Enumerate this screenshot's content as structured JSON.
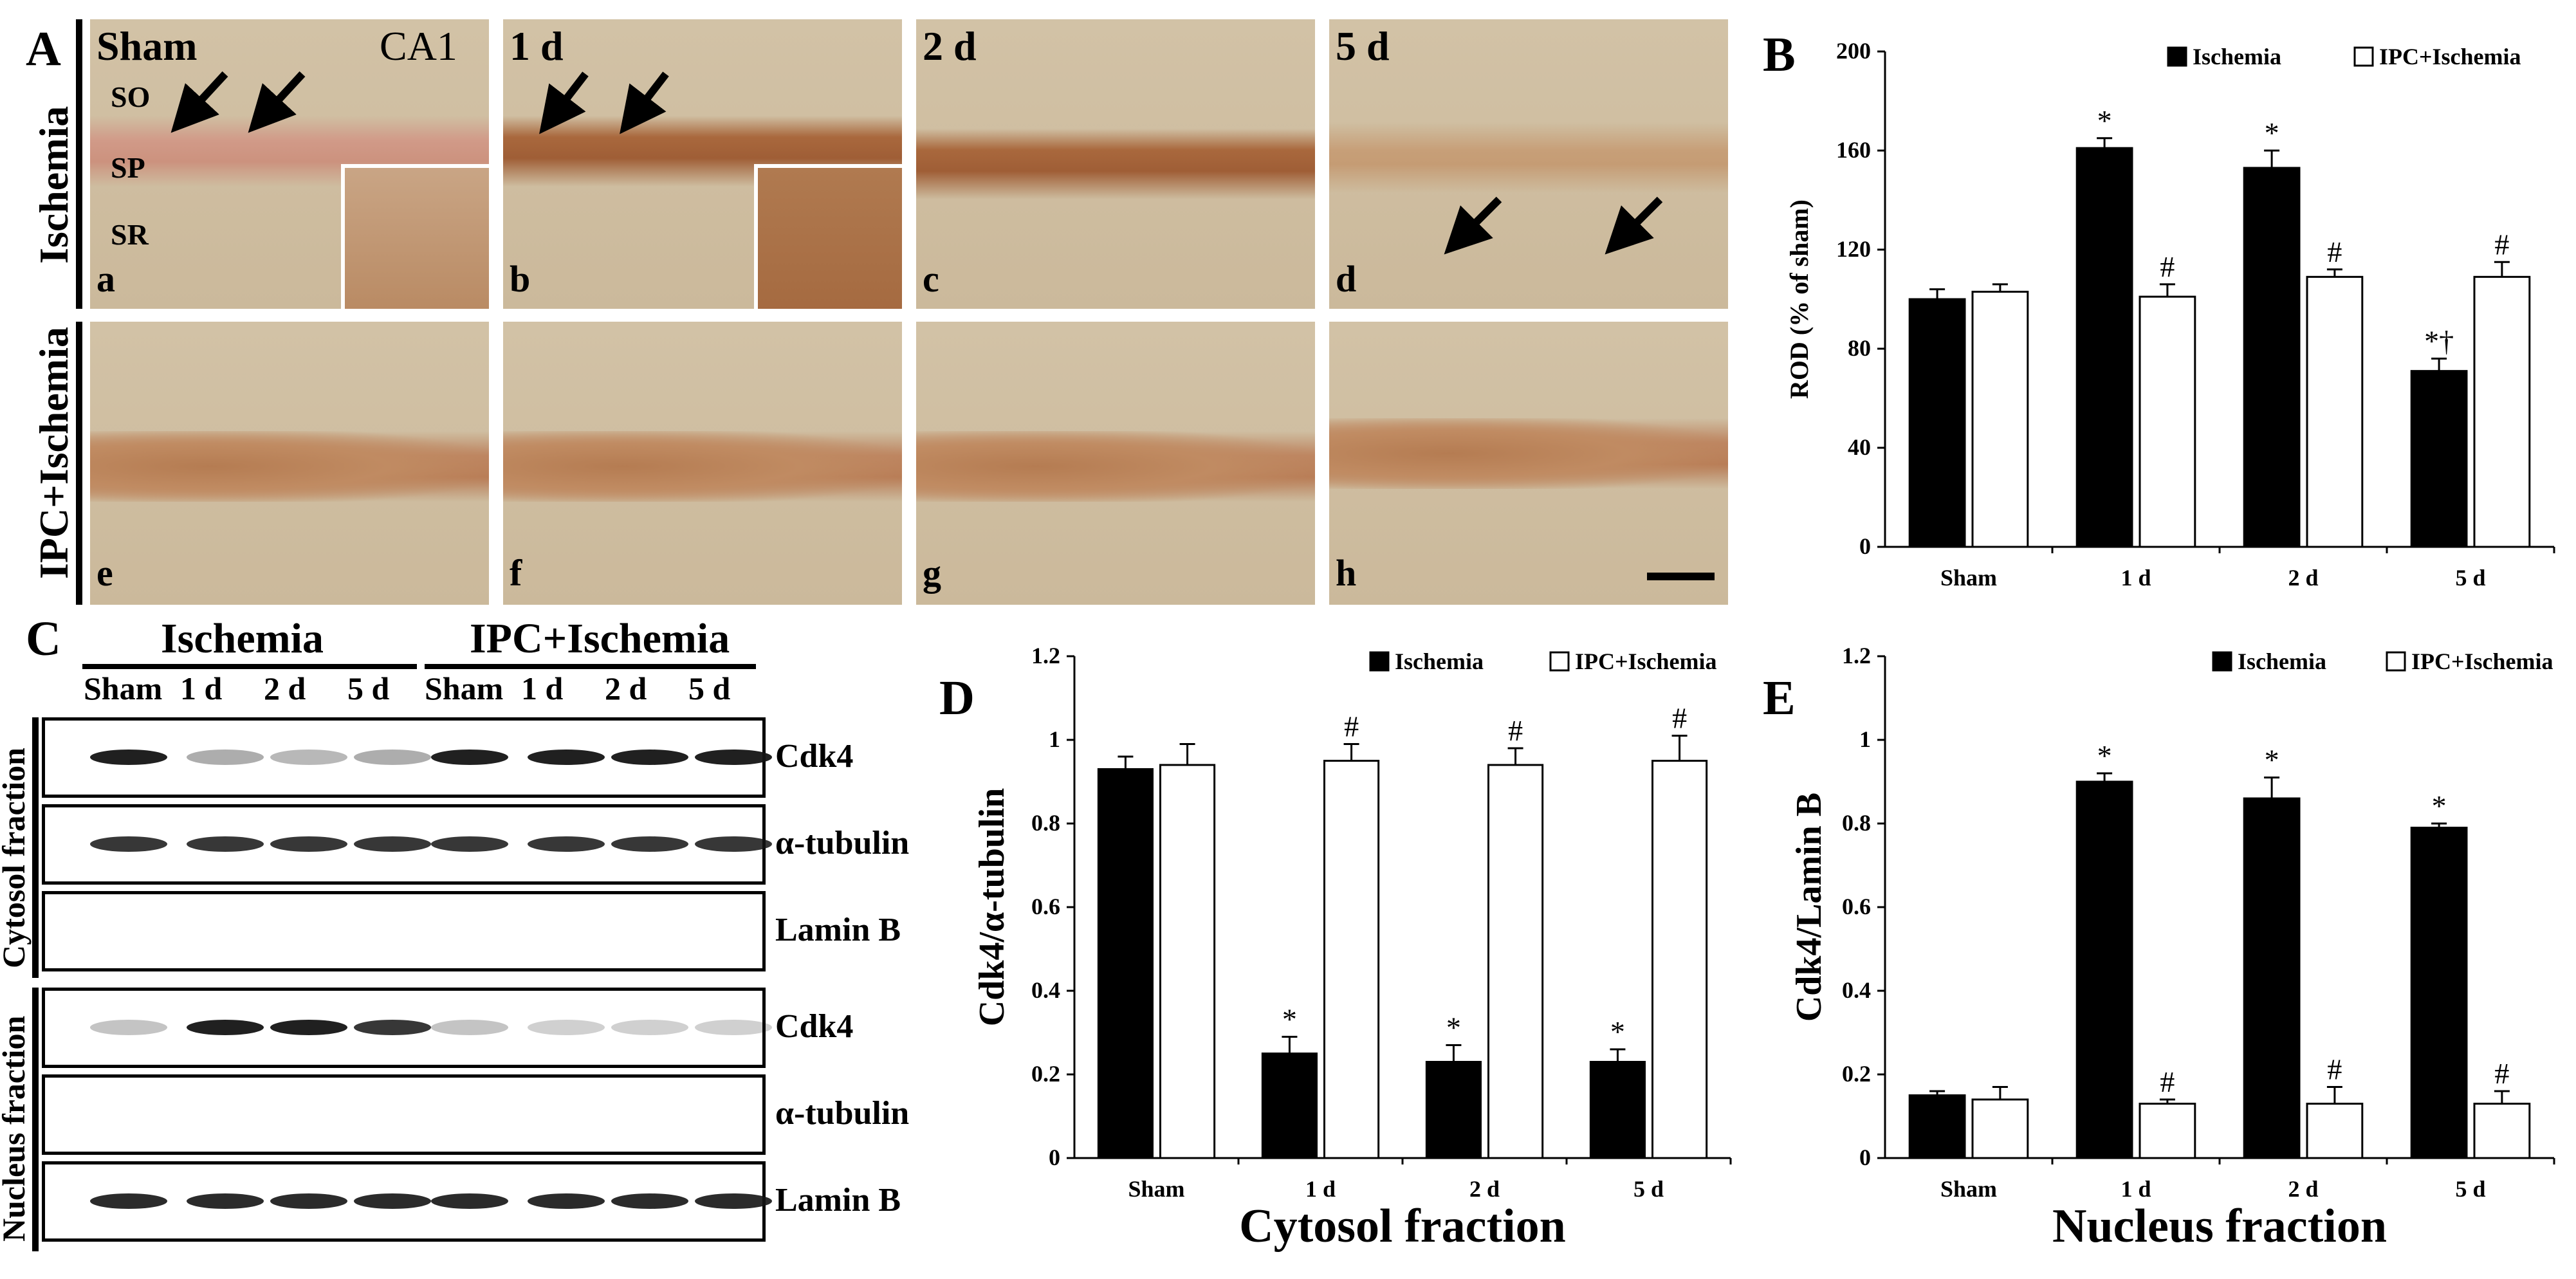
{
  "panels": {
    "A": {
      "letter": "A",
      "region_label": "CA1",
      "row_labels": [
        "Ischemia",
        "IPC+Ischemia"
      ],
      "time_labels": [
        "Sham",
        "1 d",
        "2 d",
        "5 d"
      ],
      "layer_labels": [
        "SO",
        "SP",
        "SR"
      ],
      "sub_labels": [
        "a",
        "b",
        "c",
        "d",
        "e",
        "f",
        "g",
        "h"
      ]
    },
    "C": {
      "letter": "C",
      "group_labels": [
        "Ischemia",
        "IPC+Ischemia"
      ],
      "lane_labels": [
        "Sham",
        "1 d",
        "2 d",
        "5 d",
        "Sham",
        "1 d",
        "2 d",
        "5 d"
      ],
      "fraction_labels": [
        "Cytosol fraction",
        "Nucleus fraction"
      ],
      "protein_labels": [
        "Cdk4",
        "α-tubulin",
        "Lamin B",
        "Cdk4",
        "α-tubulin",
        "Lamin B"
      ]
    }
  },
  "colors": {
    "ischemia": "#000000",
    "ipc": "#ffffff"
  },
  "chart_data": [
    {
      "id": "B",
      "letter": "B",
      "type": "bar",
      "title": "",
      "xlabel": "",
      "ylabel": "ROD (% of sham)",
      "categories": [
        "Sham",
        "1 d",
        "2 d",
        "5 d"
      ],
      "ylim": [
        0,
        200
      ],
      "yticks": [
        0,
        40,
        80,
        120,
        160,
        200
      ],
      "series": [
        {
          "name": "Ischemia",
          "values": [
            100,
            161,
            153,
            71
          ],
          "errors": [
            4,
            4,
            7,
            5
          ],
          "marks": [
            "",
            "*",
            "*",
            "*†"
          ]
        },
        {
          "name": "IPC+Ischemia",
          "values": [
            103,
            101,
            109,
            109
          ],
          "errors": [
            3,
            5,
            3,
            6
          ],
          "marks": [
            "",
            "#",
            "#",
            "#"
          ]
        }
      ],
      "legend": "top-right"
    },
    {
      "id": "D",
      "letter": "D",
      "type": "bar",
      "title": "Cytosol fraction",
      "xlabel": "",
      "ylabel": "Cdk4/α-tubulin",
      "categories": [
        "Sham",
        "1 d",
        "2 d",
        "5 d"
      ],
      "ylim": [
        0,
        1.2
      ],
      "yticks": [
        "0",
        "0.2",
        "0.4",
        "0.6",
        "0.8",
        "1",
        "1.2"
      ],
      "series": [
        {
          "name": "Ischemia",
          "values": [
            0.93,
            0.25,
            0.23,
            0.23
          ],
          "errors": [
            0.03,
            0.04,
            0.04,
            0.03
          ],
          "marks": [
            "",
            "*",
            "*",
            "*"
          ]
        },
        {
          "name": "IPC+Ischemia",
          "values": [
            0.94,
            0.95,
            0.94,
            0.95
          ],
          "errors": [
            0.05,
            0.04,
            0.04,
            0.06
          ],
          "marks": [
            "",
            "#",
            "#",
            "#"
          ]
        }
      ],
      "legend": "top-right"
    },
    {
      "id": "E",
      "letter": "E",
      "type": "bar",
      "title": "Nucleus fraction",
      "xlabel": "",
      "ylabel": "Cdk4/Lamin B",
      "categories": [
        "Sham",
        "1 d",
        "2 d",
        "5 d"
      ],
      "ylim": [
        0,
        1.2
      ],
      "yticks": [
        "0",
        "0.2",
        "0.4",
        "0.6",
        "0.8",
        "1",
        "1.2"
      ],
      "series": [
        {
          "name": "Ischemia",
          "values": [
            0.15,
            0.9,
            0.86,
            0.79
          ],
          "errors": [
            0.01,
            0.02,
            0.05,
            0.01
          ],
          "marks": [
            "",
            "*",
            "*",
            "*"
          ]
        },
        {
          "name": "IPC+Ischemia",
          "values": [
            0.14,
            0.13,
            0.13,
            0.13
          ],
          "errors": [
            0.03,
            0.01,
            0.04,
            0.03
          ],
          "marks": [
            "",
            "#",
            "#",
            "#"
          ]
        }
      ],
      "legend": "top-right"
    }
  ]
}
